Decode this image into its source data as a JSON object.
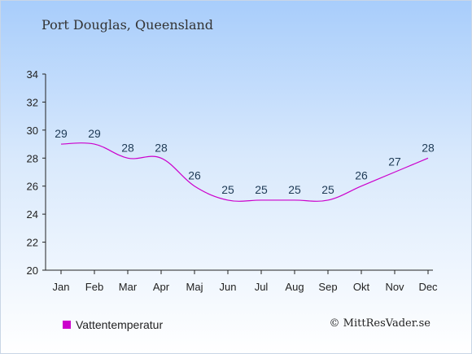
{
  "header": {
    "title": "Port Douglas, Queensland"
  },
  "legend": {
    "series_label": "Vattentemperatur"
  },
  "footer": {
    "copyright": "© MittResVader.se"
  },
  "colors": {
    "series": "#cc00cc",
    "axis": "#222222"
  },
  "chart_data": {
    "type": "line",
    "title": "Port Douglas, Queensland",
    "categories": [
      "Jan",
      "Feb",
      "Mar",
      "Apr",
      "Maj",
      "Jun",
      "Jul",
      "Aug",
      "Sep",
      "Okt",
      "Nov",
      "Dec"
    ],
    "series": [
      {
        "name": "Vattentemperatur",
        "values": [
          29,
          29,
          28,
          28,
          26,
          25,
          25,
          25,
          25,
          26,
          27,
          28
        ]
      }
    ],
    "ylim": [
      20,
      34
    ],
    "yticks": [
      20,
      22,
      24,
      26,
      28,
      30,
      32,
      34
    ],
    "grid": false,
    "legend_position": "bottom-left",
    "data_labels": true
  }
}
